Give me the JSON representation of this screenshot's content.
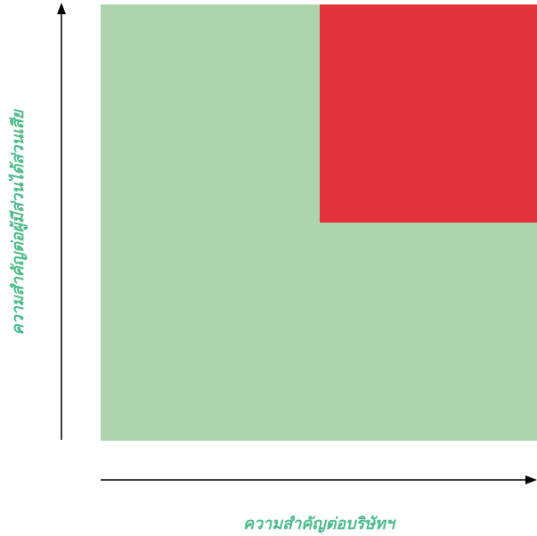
{
  "axes": {
    "x_label": "ความสำคัญต่อบริษัทฯ",
    "y_label": "ความสำคัญต่อผู้มีส่วนได้ส่วนเสีย"
  },
  "colors": {
    "background_zone": "#acd5af",
    "high_zone": "#e3323a",
    "label_text": "#4dbb8b",
    "axis_line": "#000000"
  }
}
